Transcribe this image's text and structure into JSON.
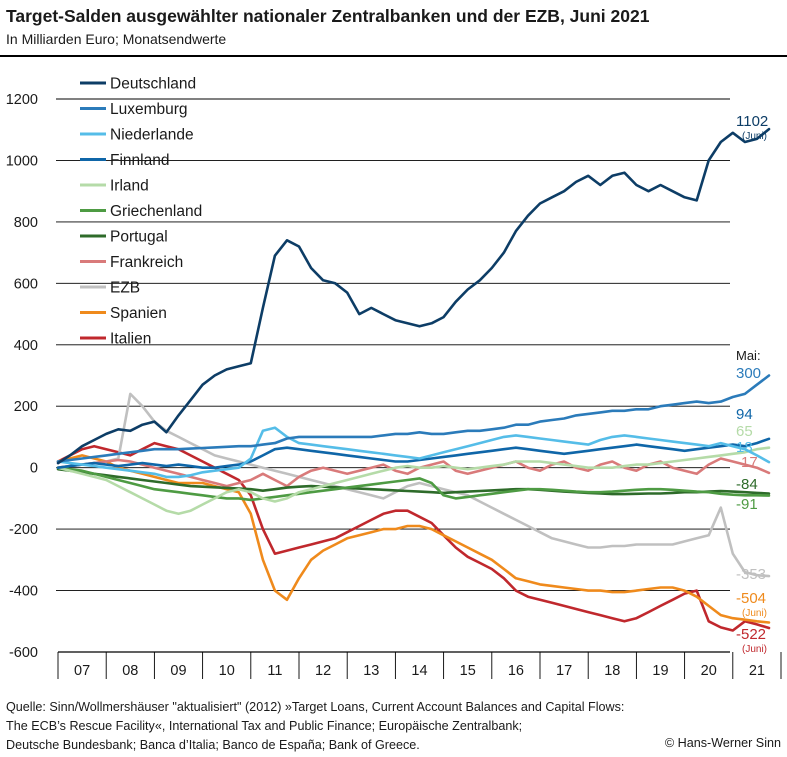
{
  "header": {
    "title": "Target-Salden ausgewählter nationaler Zentralbanken und der EZB, Juni 2021",
    "subtitle": "In Milliarden Euro; Monatsendwerte"
  },
  "footer": {
    "source_line1": "Quelle: Sinn/Wollmershäuser \"aktualisiert\" (2012) »Target Loans, Current Account Balances and Capital Flows:",
    "source_line2": "The ECB’s Rescue Facility«,  International Tax and Public Finance; Europäische Zentralbank;",
    "source_line3": "Deutsche Bundesbank; Banca d’Italia; Banco de España; Bank of Greece.",
    "copyright": "© Hans-Werner Sinn"
  },
  "chart_data": {
    "type": "line",
    "title": "Target-Salden ausgewählter nationaler Zentralbanken und der EZB, Juni 2021",
    "subtitle": "In Milliarden Euro; Monatsendwerte",
    "xlabel": "",
    "ylabel": "",
    "x_start": 2007.0,
    "x_step_years": 0.25,
    "xlim": [
      2007.0,
      2021.6
    ],
    "ylim": [
      -600,
      1200
    ],
    "yticks": [
      -600,
      -400,
      -200,
      0,
      200,
      400,
      600,
      800,
      1000,
      1200
    ],
    "ytick_labels": [
      "-600",
      "-400",
      "-200",
      "0",
      "200",
      "400",
      "600",
      "800",
      "1000",
      "1200"
    ],
    "x_tick_labels": [
      "07",
      "08",
      "09",
      "10",
      "11",
      "12",
      "13",
      "14",
      "15",
      "16",
      "17",
      "18",
      "19",
      "20",
      "21"
    ],
    "grid": "horizontal",
    "legend_position": "top-left",
    "end_label_header": "Mai:",
    "series": [
      {
        "name": "Deutschland",
        "color": "#0d3d66",
        "end_label": "1102",
        "end_note": "(Juni)",
        "values": [
          15,
          40,
          70,
          90,
          110,
          125,
          120,
          140,
          150,
          115,
          170,
          220,
          270,
          300,
          320,
          330,
          340,
          520,
          690,
          740,
          720,
          650,
          610,
          600,
          570,
          500,
          520,
          500,
          480,
          470,
          460,
          470,
          490,
          540,
          580,
          610,
          650,
          700,
          770,
          820,
          860,
          880,
          900,
          930,
          950,
          920,
          950,
          960,
          920,
          900,
          920,
          900,
          880,
          870,
          1000,
          1060,
          1090,
          1060,
          1070,
          1102
        ]
      },
      {
        "name": "Luxemburg",
        "color": "#2b7bba",
        "end_label": "300",
        "values": [
          20,
          25,
          30,
          35,
          40,
          45,
          50,
          55,
          60,
          60,
          60,
          62,
          64,
          66,
          68,
          70,
          70,
          75,
          80,
          95,
          100,
          100,
          100,
          100,
          100,
          100,
          100,
          105,
          110,
          110,
          115,
          110,
          110,
          115,
          120,
          120,
          125,
          130,
          140,
          140,
          150,
          155,
          160,
          170,
          175,
          180,
          185,
          185,
          190,
          190,
          200,
          205,
          210,
          215,
          210,
          215,
          230,
          240,
          270,
          300
        ]
      },
      {
        "name": "Niederlande",
        "color": "#55bde8",
        "end_label": "18",
        "values": [
          20,
          15,
          10,
          5,
          0,
          -5,
          -10,
          -15,
          -20,
          -30,
          -30,
          -25,
          -15,
          -10,
          -5,
          0,
          30,
          120,
          130,
          100,
          80,
          75,
          70,
          65,
          60,
          55,
          50,
          45,
          40,
          35,
          30,
          40,
          50,
          60,
          70,
          80,
          90,
          100,
          105,
          100,
          95,
          90,
          85,
          80,
          75,
          90,
          100,
          105,
          100,
          95,
          90,
          85,
          80,
          75,
          70,
          80,
          70,
          60,
          40,
          18
        ]
      },
      {
        "name": "Finnland",
        "color": "#0f66a8",
        "end_label": "94",
        "values": [
          0,
          5,
          10,
          15,
          10,
          5,
          10,
          15,
          10,
          5,
          10,
          5,
          0,
          0,
          5,
          10,
          20,
          40,
          60,
          65,
          60,
          55,
          50,
          45,
          40,
          35,
          30,
          25,
          20,
          20,
          25,
          30,
          35,
          40,
          45,
          50,
          55,
          60,
          65,
          60,
          55,
          50,
          45,
          50,
          55,
          60,
          65,
          70,
          75,
          70,
          65,
          60,
          55,
          60,
          65,
          70,
          75,
          70,
          80,
          94
        ]
      },
      {
        "name": "Irland",
        "color": "#b5dba8",
        "end_label": "65",
        "values": [
          0,
          -10,
          -20,
          -30,
          -40,
          -60,
          -80,
          -100,
          -120,
          -140,
          -150,
          -140,
          -120,
          -100,
          -80,
          -70,
          -80,
          -100,
          -110,
          -100,
          -80,
          -70,
          -60,
          -50,
          -40,
          -30,
          -20,
          -10,
          0,
          5,
          0,
          0,
          5,
          0,
          -5,
          0,
          5,
          10,
          20,
          20,
          20,
          15,
          10,
          5,
          0,
          0,
          0,
          5,
          10,
          10,
          15,
          20,
          25,
          30,
          35,
          40,
          45,
          50,
          60,
          65
        ]
      },
      {
        "name": "Griechenland",
        "color": "#4e9b43",
        "end_label": "-91",
        "values": [
          0,
          -5,
          -10,
          -20,
          -30,
          -40,
          -50,
          -60,
          -70,
          -75,
          -80,
          -85,
          -90,
          -95,
          -100,
          -100,
          -105,
          -100,
          -95,
          -90,
          -85,
          -80,
          -75,
          -70,
          -65,
          -60,
          -55,
          -50,
          -45,
          -40,
          -35,
          -50,
          -90,
          -100,
          -95,
          -90,
          -85,
          -80,
          -75,
          -70,
          -70,
          -72,
          -75,
          -78,
          -80,
          -80,
          -78,
          -75,
          -72,
          -70,
          -70,
          -72,
          -75,
          -78,
          -80,
          -85,
          -88,
          -90,
          -90,
          -91
        ]
      },
      {
        "name": "Portugal",
        "color": "#2e6b2a",
        "end_label": "-84",
        "values": [
          -5,
          -10,
          -15,
          -20,
          -25,
          -30,
          -35,
          -40,
          -45,
          -50,
          -55,
          -60,
          -62,
          -64,
          -66,
          -68,
          -70,
          -75,
          -70,
          -65,
          -62,
          -60,
          -62,
          -64,
          -66,
          -68,
          -70,
          -72,
          -74,
          -76,
          -78,
          -80,
          -82,
          -80,
          -78,
          -76,
          -74,
          -72,
          -70,
          -70,
          -72,
          -75,
          -78,
          -80,
          -82,
          -84,
          -86,
          -86,
          -85,
          -84,
          -84,
          -82,
          -80,
          -80,
          -78,
          -76,
          -78,
          -80,
          -82,
          -84
        ]
      },
      {
        "name": "Frankreich",
        "color": "#d97a7a",
        "end_label": "-17",
        "values": [
          0,
          5,
          10,
          15,
          20,
          25,
          20,
          10,
          0,
          -10,
          -20,
          -30,
          -40,
          -50,
          -60,
          -50,
          -40,
          -20,
          -40,
          -60,
          -30,
          -10,
          0,
          -10,
          -20,
          -10,
          0,
          10,
          -10,
          -20,
          0,
          10,
          20,
          -10,
          -20,
          -10,
          0,
          10,
          20,
          0,
          -10,
          10,
          20,
          0,
          -10,
          10,
          20,
          0,
          -10,
          10,
          20,
          0,
          -10,
          -20,
          10,
          30,
          20,
          10,
          0,
          -17
        ]
      },
      {
        "name": "EZB",
        "color": "#c0c0c0",
        "end_label": "-353",
        "values": [
          0,
          5,
          10,
          15,
          20,
          30,
          240,
          200,
          150,
          120,
          100,
          80,
          60,
          40,
          30,
          20,
          10,
          0,
          -10,
          -20,
          -30,
          -40,
          -50,
          -60,
          -70,
          -80,
          -90,
          -100,
          -80,
          -60,
          -50,
          -60,
          -70,
          -80,
          -90,
          -110,
          -130,
          -150,
          -170,
          -190,
          -210,
          -230,
          -240,
          -250,
          -260,
          -260,
          -255,
          -255,
          -250,
          -250,
          -250,
          -250,
          -240,
          -230,
          -220,
          -130,
          -280,
          -340,
          -350,
          -353
        ]
      },
      {
        "name": "Spanien",
        "color": "#ef8a1c",
        "end_label": "-504",
        "end_note": "(Juni)",
        "values": [
          20,
          30,
          40,
          30,
          20,
          0,
          -10,
          -20,
          -30,
          -40,
          -50,
          -50,
          -50,
          -60,
          -70,
          -80,
          -150,
          -300,
          -400,
          -430,
          -360,
          -300,
          -270,
          -250,
          -230,
          -220,
          -210,
          -200,
          -200,
          -190,
          -190,
          -200,
          -220,
          -240,
          -260,
          -280,
          -300,
          -330,
          -360,
          -370,
          -380,
          -385,
          -390,
          -395,
          -400,
          -400,
          -405,
          -405,
          -400,
          -395,
          -390,
          -390,
          -400,
          -420,
          -450,
          -480,
          -490,
          -495,
          -500,
          -504
        ]
      },
      {
        "name": "Italien",
        "color": "#c0282d",
        "end_label": "-522",
        "end_note": "(Juni)",
        "values": [
          20,
          40,
          60,
          70,
          60,
          50,
          40,
          60,
          80,
          70,
          60,
          40,
          20,
          0,
          -20,
          -40,
          -90,
          -200,
          -280,
          -270,
          -260,
          -250,
          -240,
          -230,
          -210,
          -190,
          -170,
          -150,
          -140,
          -140,
          -160,
          -180,
          -220,
          -260,
          -290,
          -310,
          -330,
          -360,
          -400,
          -420,
          -430,
          -440,
          -450,
          -460,
          -470,
          -480,
          -490,
          -500,
          -490,
          -470,
          -450,
          -430,
          -410,
          -400,
          -500,
          -520,
          -530,
          -500,
          -510,
          -522
        ]
      }
    ]
  }
}
